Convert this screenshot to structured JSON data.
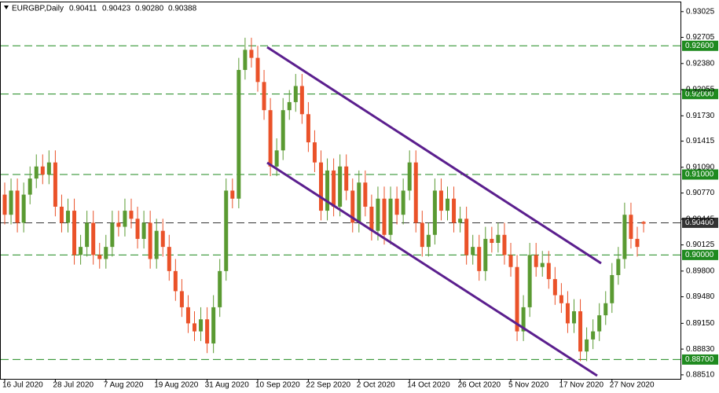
{
  "chart_data": {
    "type": "candlestick",
    "symbol": "EURGBP,Daily",
    "header_values": [
      "0.90411",
      "0.90423",
      "0.90280",
      "0.90388"
    ],
    "up_color": "#5a9a32",
    "down_color": "#ea5229",
    "categories": [
      "16 Jul 2020",
      null,
      null,
      null,
      null,
      null,
      null,
      null,
      "28 Jul 2020",
      null,
      null,
      null,
      null,
      null,
      null,
      null,
      "7 Aug 2020",
      null,
      null,
      null,
      null,
      null,
      null,
      null,
      "19 Aug 2020",
      null,
      null,
      null,
      null,
      null,
      null,
      null,
      "31 Aug 2020",
      null,
      null,
      null,
      null,
      null,
      null,
      null,
      "10 Sep 2020",
      null,
      null,
      null,
      null,
      null,
      null,
      null,
      "22 Sep 2020",
      null,
      null,
      null,
      null,
      null,
      null,
      null,
      "2 Oct 2020",
      null,
      null,
      null,
      null,
      null,
      null,
      null,
      "14 Oct 2020",
      null,
      null,
      null,
      null,
      null,
      null,
      null,
      "26 Oct 2020",
      null,
      null,
      null,
      null,
      null,
      null,
      null,
      "5 Nov 2020",
      null,
      null,
      null,
      null,
      null,
      null,
      null,
      "17 Nov 2020",
      null,
      null,
      null,
      null,
      null,
      null,
      null,
      "27 Nov 2020",
      null,
      null,
      null,
      null,
      null
    ],
    "open": [
      0.9075,
      0.905,
      0.908,
      0.904,
      0.9075,
      0.9095,
      0.911,
      0.91,
      0.9115,
      0.906,
      0.904,
      0.9055,
      0.9,
      0.901,
      0.904,
      0.9,
      0.8995,
      0.901,
      0.904,
      0.9035,
      0.9055,
      0.9045,
      0.902,
      0.904,
      0.8995,
      0.903,
      0.901,
      0.898,
      0.8955,
      0.8935,
      0.8915,
      0.8905,
      0.892,
      0.889,
      0.8935,
      0.898,
      0.908,
      0.907,
      0.923,
      0.9255,
      0.9245,
      0.9215,
      0.918,
      0.911,
      0.913,
      0.918,
      0.919,
      0.921,
      0.9175,
      0.914,
      0.9115,
      0.9055,
      0.9105,
      0.906,
      0.911,
      0.908,
      0.904,
      0.909,
      0.906,
      0.903,
      0.907,
      0.9025,
      0.907,
      0.905,
      0.908,
      0.9115,
      0.904,
      0.901,
      0.9025,
      0.908,
      0.9055,
      0.907,
      0.904,
      0.9045,
      0.9,
      0.901,
      0.898,
      0.902,
      0.9015,
      0.9025,
      0.9,
      0.8985,
      0.8905,
      0.8935,
      0.9,
      0.8985,
      0.899,
      0.897,
      0.895,
      0.894,
      0.8915,
      0.893,
      0.888,
      0.8895,
      0.8905,
      0.8925,
      0.894,
      0.8975,
      0.8995,
      0.905,
      0.902,
      0.90411
    ],
    "high": [
      0.909,
      0.9095,
      0.9095,
      0.909,
      0.911,
      0.9125,
      0.9125,
      0.913,
      0.913,
      0.9075,
      0.907,
      0.907,
      0.9025,
      0.9055,
      0.9055,
      0.9015,
      0.9025,
      0.9055,
      0.9055,
      0.907,
      0.907,
      0.906,
      0.9055,
      0.9055,
      0.9045,
      0.9045,
      0.9025,
      0.8995,
      0.897,
      0.895,
      0.893,
      0.8935,
      0.8935,
      0.895,
      0.8995,
      0.9095,
      0.9095,
      0.9245,
      0.927,
      0.927,
      0.926,
      0.923,
      0.9195,
      0.9145,
      0.9195,
      0.9205,
      0.9225,
      0.9225,
      0.919,
      0.9155,
      0.913,
      0.912,
      0.912,
      0.9125,
      0.9125,
      0.9095,
      0.9105,
      0.9105,
      0.9075,
      0.9085,
      0.9085,
      0.9085,
      0.9085,
      0.9095,
      0.913,
      0.913,
      0.9055,
      0.904,
      0.9095,
      0.9095,
      0.9085,
      0.9085,
      0.906,
      0.906,
      0.9025,
      0.9025,
      0.9035,
      0.9035,
      0.904,
      0.904,
      0.9015,
      0.9,
      0.895,
      0.9015,
      0.9015,
      0.9005,
      0.9005,
      0.8985,
      0.8965,
      0.8955,
      0.8945,
      0.8945,
      0.891,
      0.892,
      0.894,
      0.8955,
      0.899,
      0.901,
      0.9065,
      0.9065,
      0.9035,
      0.90423
    ],
    "low": [
      0.9038,
      0.9038,
      0.9028,
      0.9028,
      0.9063,
      0.9083,
      0.9088,
      0.9088,
      0.9048,
      0.9028,
      0.9028,
      0.8988,
      0.8988,
      0.8998,
      0.8988,
      0.8983,
      0.8983,
      0.8998,
      0.9023,
      0.9023,
      0.9033,
      0.9008,
      0.9008,
      0.8983,
      0.8983,
      0.8998,
      0.8968,
      0.8943,
      0.8923,
      0.8903,
      0.8893,
      0.8893,
      0.8878,
      0.8878,
      0.8923,
      0.8968,
      0.9058,
      0.9058,
      0.9218,
      0.9233,
      0.9203,
      0.9168,
      0.9098,
      0.9098,
      0.9118,
      0.9168,
      0.9178,
      0.9163,
      0.9128,
      0.9103,
      0.9043,
      0.9043,
      0.9048,
      0.9048,
      0.9068,
      0.9028,
      0.9028,
      0.9048,
      0.9018,
      0.9018,
      0.9013,
      0.9013,
      0.9038,
      0.9038,
      0.9068,
      0.9028,
      0.8998,
      0.8998,
      0.9013,
      0.9043,
      0.9043,
      0.9028,
      0.9028,
      0.8988,
      0.8988,
      0.8968,
      0.8968,
      0.9003,
      0.9003,
      0.8988,
      0.8973,
      0.8893,
      0.8893,
      0.8923,
      0.8973,
      0.8973,
      0.8958,
      0.8938,
      0.8928,
      0.8903,
      0.8903,
      0.8868,
      0.8868,
      0.8883,
      0.8893,
      0.8913,
      0.8928,
      0.8963,
      0.8983,
      0.9008,
      0.8998,
      0.9028
    ],
    "close": [
      0.905,
      0.908,
      0.904,
      0.9075,
      0.9095,
      0.911,
      0.91,
      0.9115,
      0.906,
      0.904,
      0.9055,
      0.9,
      0.901,
      0.904,
      0.9,
      0.8995,
      0.901,
      0.904,
      0.9035,
      0.9055,
      0.9045,
      0.902,
      0.904,
      0.8995,
      0.903,
      0.901,
      0.898,
      0.8955,
      0.8935,
      0.8915,
      0.8905,
      0.892,
      0.889,
      0.8935,
      0.898,
      0.908,
      0.907,
      0.923,
      0.9255,
      0.9245,
      0.9215,
      0.918,
      0.911,
      0.913,
      0.918,
      0.919,
      0.921,
      0.9175,
      0.914,
      0.9115,
      0.9055,
      0.9105,
      0.906,
      0.911,
      0.908,
      0.904,
      0.909,
      0.906,
      0.903,
      0.907,
      0.9025,
      0.907,
      0.905,
      0.908,
      0.9115,
      0.904,
      0.901,
      0.9025,
      0.908,
      0.9055,
      0.907,
      0.904,
      0.9045,
      0.9,
      0.901,
      0.898,
      0.902,
      0.9015,
      0.9025,
      0.9,
      0.8985,
      0.8905,
      0.8935,
      0.9,
      0.8985,
      0.899,
      0.897,
      0.895,
      0.894,
      0.8915,
      0.893,
      0.888,
      0.8895,
      0.8905,
      0.8925,
      0.894,
      0.8975,
      0.8995,
      0.905,
      0.902,
      0.901,
      0.90388
    ],
    "ylim": [
      0.8846,
      0.9314
    ],
    "yticks": [
      0.93025,
      0.92705,
      {
        "value": 0.9238,
        "label": "0.92380"
      },
      0.92055,
      {
        "value": 0.9173,
        "label": "0.91730"
      },
      0.91415,
      {
        "value": 0.9109,
        "label": "0.91090"
      },
      {
        "value": 0.9077,
        "label": "0.90770"
      },
      0.90445,
      0.90125,
      {
        "value": 0.898,
        "label": "0.89800"
      },
      {
        "value": 0.8948,
        "label": "0.89480"
      },
      {
        "value": 0.8915,
        "label": "0.89150"
      },
      {
        "value": 0.8883,
        "label": "0.88830"
      },
      {
        "value": 0.8851,
        "label": "0.88510"
      }
    ],
    "levels": [
      {
        "value": 0.926,
        "label": "0.92600",
        "color": "#1f8a1f"
      },
      {
        "value": 0.92,
        "label": "0.92000",
        "color": "#1f8a1f"
      },
      {
        "value": 0.91,
        "label": "0.91000",
        "color": "#1f8a1f"
      },
      {
        "value": 0.904,
        "label": "0.90400",
        "color": "#333333"
      },
      {
        "value": 0.9,
        "label": "0.90000",
        "color": "#1f8a1f"
      },
      {
        "value": 0.887,
        "label": "0.88700",
        "color": "#1f8a1f"
      }
    ]
  }
}
